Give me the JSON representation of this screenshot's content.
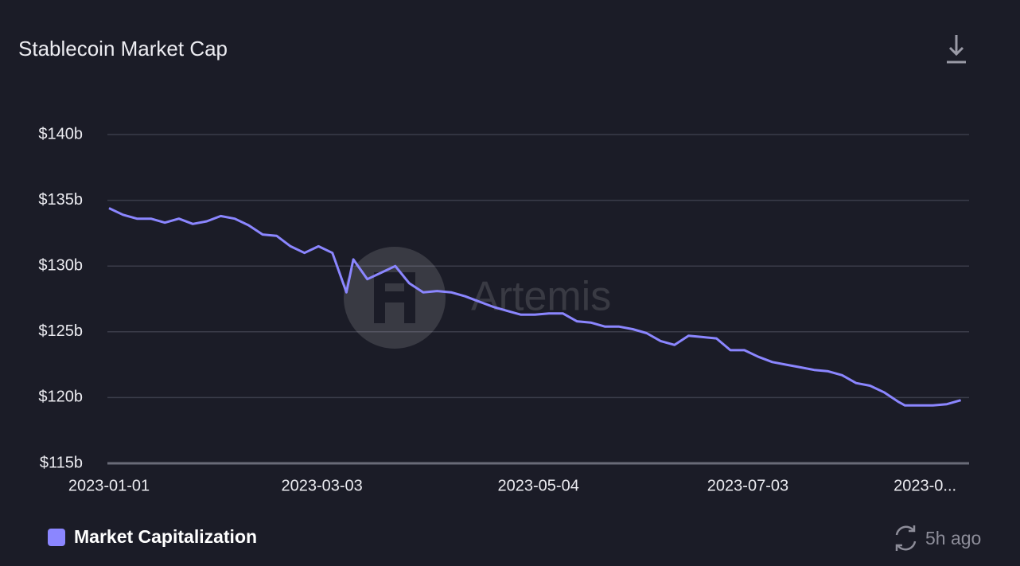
{
  "chart_data": {
    "type": "line",
    "title": "Stablecoin Market Cap",
    "watermark": "Artemis",
    "updated": "5h ago",
    "x": [
      "2023-01-01",
      "2023-01-05",
      "2023-01-09",
      "2023-01-13",
      "2023-01-17",
      "2023-01-21",
      "2023-01-25",
      "2023-01-29",
      "2023-02-02",
      "2023-02-06",
      "2023-02-10",
      "2023-02-14",
      "2023-02-18",
      "2023-02-22",
      "2023-02-26",
      "2023-03-02",
      "2023-03-06",
      "2023-03-10",
      "2023-03-12",
      "2023-03-16",
      "2023-03-20",
      "2023-03-24",
      "2023-03-28",
      "2023-04-01",
      "2023-04-05",
      "2023-04-09",
      "2023-04-13",
      "2023-04-17",
      "2023-04-21",
      "2023-04-25",
      "2023-04-29",
      "2023-05-03",
      "2023-05-07",
      "2023-05-11",
      "2023-05-15",
      "2023-05-19",
      "2023-05-23",
      "2023-05-27",
      "2023-05-31",
      "2023-06-04",
      "2023-06-08",
      "2023-06-12",
      "2023-06-16",
      "2023-06-20",
      "2023-06-24",
      "2023-06-28",
      "2023-07-02",
      "2023-07-06",
      "2023-07-10",
      "2023-07-14",
      "2023-07-18",
      "2023-07-22",
      "2023-07-26",
      "2023-07-30",
      "2023-08-03",
      "2023-08-07",
      "2023-08-11",
      "2023-08-15",
      "2023-08-17",
      "2023-08-21",
      "2023-08-25",
      "2023-08-29",
      "2023-09-02"
    ],
    "series": [
      {
        "name": "Market Capitalization",
        "color": "#8b86ff",
        "values": [
          134.4,
          133.9,
          133.6,
          133.6,
          133.3,
          133.6,
          133.2,
          133.4,
          133.8,
          133.6,
          133.1,
          132.4,
          132.3,
          131.5,
          131.0,
          131.5,
          131.0,
          128.0,
          130.5,
          129.0,
          129.5,
          130.0,
          128.7,
          128.0,
          128.1,
          128.0,
          127.7,
          127.3,
          126.9,
          126.6,
          126.3,
          126.3,
          126.4,
          126.4,
          125.8,
          125.7,
          125.4,
          125.4,
          125.2,
          124.9,
          124.3,
          124.0,
          124.7,
          124.6,
          124.5,
          123.6,
          123.6,
          123.1,
          122.7,
          122.5,
          122.3,
          122.1,
          122.0,
          121.7,
          121.1,
          120.9,
          120.4,
          119.7,
          119.4,
          119.4,
          119.4,
          119.5,
          119.8
        ]
      }
    ],
    "xlim": [
      "2023-01-01",
      "2023-09-03"
    ],
    "xticks": [
      "2023-01-01",
      "2023-03-03",
      "2023-05-04",
      "2023-07-03",
      {
        "value": "2023-09-02",
        "label": "2023-0..."
      }
    ],
    "ylim": [
      115,
      140
    ],
    "yticks": [
      {
        "value": 115,
        "label": "$115b"
      },
      {
        "value": 120,
        "label": "$120b"
      },
      {
        "value": 125,
        "label": "$125b"
      },
      {
        "value": 130,
        "label": "$130b"
      },
      {
        "value": 135,
        "label": "$135b"
      },
      {
        "value": 140,
        "label": "$140b"
      }
    ],
    "grid": true
  }
}
